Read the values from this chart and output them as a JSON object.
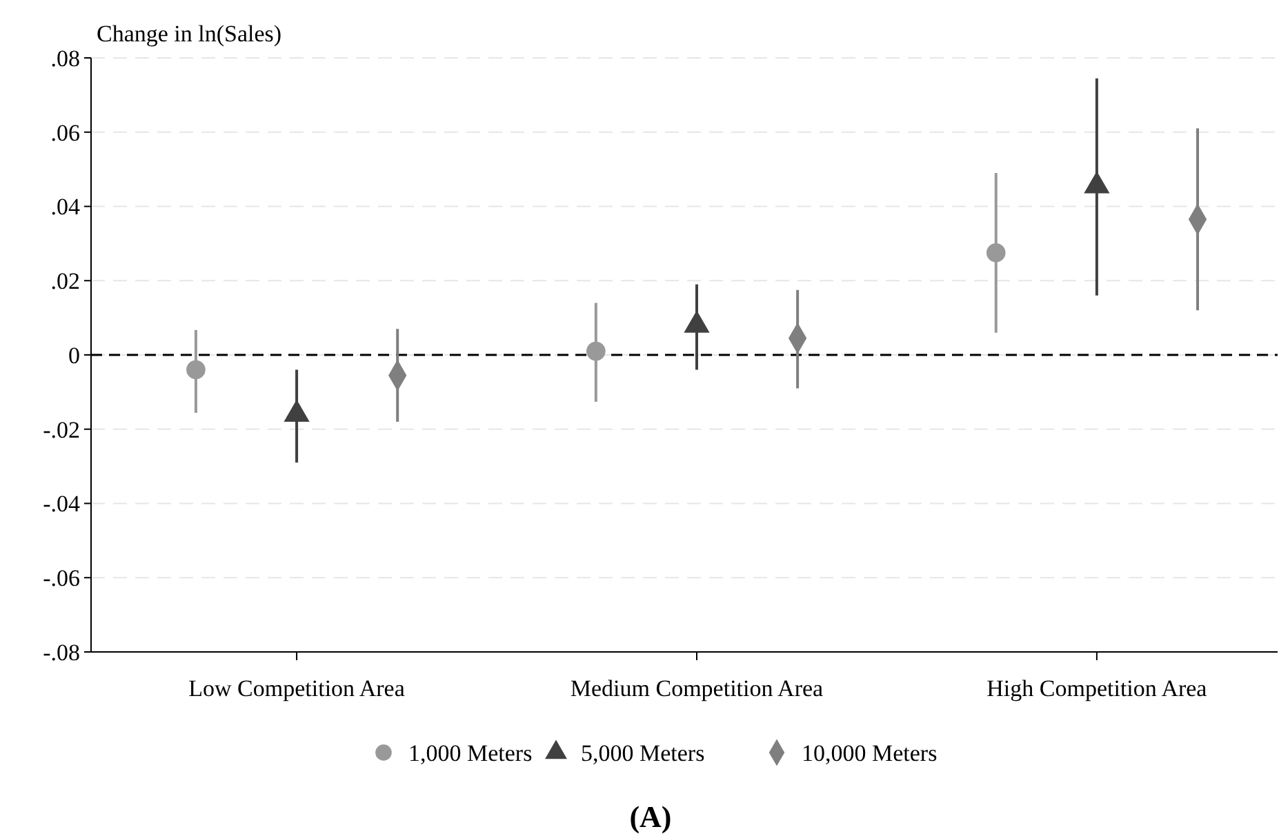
{
  "chart_data": {
    "type": "scatter",
    "ylabel": "Change in ln(Sales)",
    "categories": [
      "Low Competition Area",
      "Medium Competition Area",
      "High Competition Area"
    ],
    "series": [
      {
        "name": "1,000 Meters",
        "color": "#999999",
        "marker": "circle",
        "values": [
          -0.004,
          0.001,
          0.0275
        ],
        "errors": [
          [
            -0.0156,
            0.0067
          ],
          [
            -0.0126,
            0.014
          ],
          [
            0.006,
            0.049
          ]
        ]
      },
      {
        "name": "5,000 Meters",
        "color": "#404040",
        "marker": "triangle",
        "values": [
          -0.016,
          0.008,
          0.0455
        ],
        "errors": [
          [
            -0.029,
            -0.004
          ],
          [
            -0.004,
            0.019
          ],
          [
            0.016,
            0.0745
          ]
        ]
      },
      {
        "name": "10,000 Meters",
        "color": "#7f7f7f",
        "marker": "diamond",
        "values": [
          -0.0055,
          0.0045,
          0.0365
        ],
        "errors": [
          [
            -0.018,
            0.007
          ],
          [
            -0.009,
            0.0175
          ],
          [
            0.012,
            0.061
          ]
        ]
      }
    ],
    "ylim": [
      -0.08,
      0.08
    ],
    "yticks": [
      {
        "value": -0.08,
        "label": "-.08"
      },
      {
        "value": -0.06,
        "label": "-.06"
      },
      {
        "value": -0.04,
        "label": "-.04"
      },
      {
        "value": -0.02,
        "label": "-.02"
      },
      {
        "value": 0,
        "label": "0"
      },
      {
        "value": 0.02,
        "label": ".02"
      },
      {
        "value": 0.04,
        "label": ".04"
      },
      {
        "value": 0.06,
        "label": ".06"
      },
      {
        "value": 0.08,
        "label": ".08"
      }
    ],
    "grid": "y",
    "legend": "bottom",
    "ref_lines": [
      {
        "axis": "y",
        "value": 0,
        "color": "#000000",
        "line_style": "dashed"
      }
    ],
    "annotations": [
      "(A)"
    ]
  }
}
